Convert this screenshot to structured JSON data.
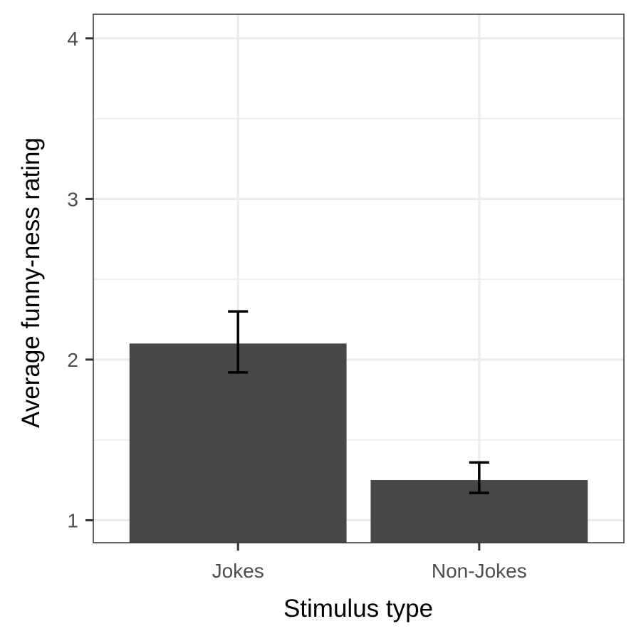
{
  "chart_data": {
    "type": "bar",
    "categories": [
      "Jokes",
      "Non-Jokes"
    ],
    "values": [
      2.1,
      1.25
    ],
    "error_bars": [
      {
        "low": 1.92,
        "high": 2.3
      },
      {
        "low": 1.17,
        "high": 1.36
      }
    ],
    "xlabel": "Stimulus type",
    "ylabel": "Average funny-ness rating",
    "ylim": [
      0.86,
      4.15
    ],
    "yticks": [
      "1",
      "2",
      "3",
      "4"
    ],
    "grid": true,
    "colors": {
      "bar": "#474747",
      "error_bar": "#000000",
      "grid": "#ebebeb",
      "panel_border": "#333333",
      "tick_label": "#4d4d4d"
    }
  }
}
